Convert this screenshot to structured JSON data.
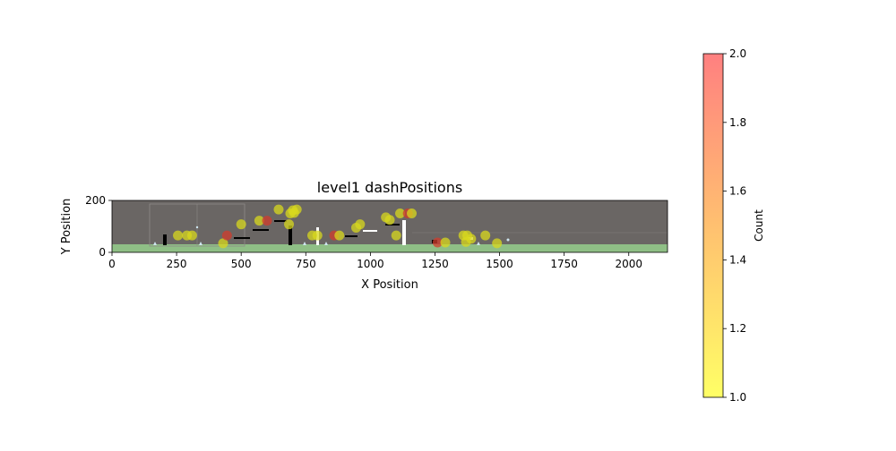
{
  "chart_data": {
    "type": "scatter",
    "title": "level1 dashPositions",
    "xlabel": "X Position",
    "ylabel": "Y Position",
    "xlim": [
      0,
      2150
    ],
    "ylim": [
      0,
      200
    ],
    "xticks": [
      0,
      250,
      500,
      750,
      1000,
      1250,
      1500,
      1750,
      2000
    ],
    "yticks": [
      0,
      200
    ],
    "grid": false,
    "background": "level screenshot underlay",
    "points": [
      {
        "x": 255,
        "y": 65,
        "count": 1
      },
      {
        "x": 290,
        "y": 65,
        "count": 1
      },
      {
        "x": 310,
        "y": 65,
        "count": 1
      },
      {
        "x": 430,
        "y": 35,
        "count": 1
      },
      {
        "x": 445,
        "y": 65,
        "count": 2
      },
      {
        "x": 500,
        "y": 108,
        "count": 1
      },
      {
        "x": 570,
        "y": 122,
        "count": 1
      },
      {
        "x": 600,
        "y": 122,
        "count": 2
      },
      {
        "x": 645,
        "y": 165,
        "count": 1
      },
      {
        "x": 685,
        "y": 108,
        "count": 1
      },
      {
        "x": 690,
        "y": 150,
        "count": 1
      },
      {
        "x": 700,
        "y": 162,
        "count": 1
      },
      {
        "x": 705,
        "y": 152,
        "count": 1
      },
      {
        "x": 715,
        "y": 165,
        "count": 1
      },
      {
        "x": 775,
        "y": 65,
        "count": 1
      },
      {
        "x": 795,
        "y": 65,
        "count": 1
      },
      {
        "x": 860,
        "y": 65,
        "count": 2
      },
      {
        "x": 880,
        "y": 65,
        "count": 1
      },
      {
        "x": 945,
        "y": 95,
        "count": 1
      },
      {
        "x": 960,
        "y": 108,
        "count": 1
      },
      {
        "x": 1060,
        "y": 135,
        "count": 1
      },
      {
        "x": 1075,
        "y": 125,
        "count": 1
      },
      {
        "x": 1100,
        "y": 65,
        "count": 1
      },
      {
        "x": 1115,
        "y": 150,
        "count": 1
      },
      {
        "x": 1145,
        "y": 150,
        "count": 2
      },
      {
        "x": 1160,
        "y": 150,
        "count": 1
      },
      {
        "x": 1260,
        "y": 38,
        "count": 2
      },
      {
        "x": 1290,
        "y": 38,
        "count": 1
      },
      {
        "x": 1360,
        "y": 65,
        "count": 1
      },
      {
        "x": 1375,
        "y": 65,
        "count": 1
      },
      {
        "x": 1370,
        "y": 40,
        "count": 1
      },
      {
        "x": 1390,
        "y": 52,
        "count": 1
      },
      {
        "x": 1445,
        "y": 65,
        "count": 1
      },
      {
        "x": 1490,
        "y": 35,
        "count": 1
      }
    ],
    "colorbar": {
      "label": "Count",
      "min": 1,
      "max": 2,
      "ticks": [
        "1.0",
        "1.2",
        "1.4",
        "1.6",
        "1.8",
        "2.0"
      ],
      "color_low": "#ffff66",
      "color_high": "#ff8080"
    }
  }
}
